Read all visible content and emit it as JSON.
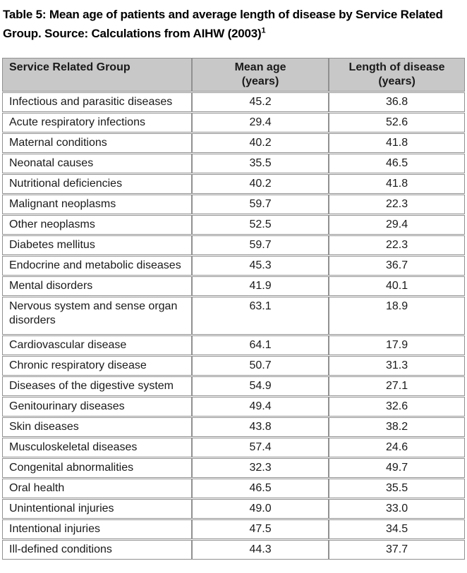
{
  "caption": {
    "text": "Table 5: Mean age of patients and average length of disease by Service Related Group. Source: Calculations from AIHW (2003)",
    "footnote_marker": "1"
  },
  "colors": {
    "header_background": "#c8c8c8",
    "table_border": "#909090",
    "text": "#1a1a1a"
  },
  "table": {
    "headers": {
      "group": "Service Related Group",
      "mean_age": "Mean age\n(years)",
      "length_of_disease": "Length of disease\n(years)"
    },
    "rows": [
      {
        "group": "Infectious and parasitic diseases",
        "mean_age": "45.2",
        "length_of_disease": "36.8"
      },
      {
        "group": "Acute respiratory infections",
        "mean_age": "29.4",
        "length_of_disease": "52.6"
      },
      {
        "group": "Maternal conditions",
        "mean_age": "40.2",
        "length_of_disease": "41.8"
      },
      {
        "group": "Neonatal causes",
        "mean_age": "35.5",
        "length_of_disease": "46.5"
      },
      {
        "group": "Nutritional deficiencies",
        "mean_age": "40.2",
        "length_of_disease": "41.8"
      },
      {
        "group": "Malignant neoplasms",
        "mean_age": "59.7",
        "length_of_disease": "22.3"
      },
      {
        "group": "Other neoplasms",
        "mean_age": "52.5",
        "length_of_disease": "29.4"
      },
      {
        "group": "Diabetes mellitus",
        "mean_age": "59.7",
        "length_of_disease": "22.3"
      },
      {
        "group": "Endocrine and metabolic diseases",
        "mean_age": "45.3",
        "length_of_disease": "36.7"
      },
      {
        "group": "Mental disorders",
        "mean_age": "41.9",
        "length_of_disease": "40.1"
      },
      {
        "group": "Nervous system and sense organ disorders",
        "mean_age": "63.1",
        "length_of_disease": "18.9"
      },
      {
        "group": "Cardiovascular disease",
        "mean_age": "64.1",
        "length_of_disease": "17.9"
      },
      {
        "group": "Chronic respiratory disease",
        "mean_age": "50.7",
        "length_of_disease": "31.3"
      },
      {
        "group": "Diseases of the digestive system",
        "mean_age": "54.9",
        "length_of_disease": "27.1"
      },
      {
        "group": "Genitourinary diseases",
        "mean_age": "49.4",
        "length_of_disease": "32.6"
      },
      {
        "group": "Skin diseases",
        "mean_age": "43.8",
        "length_of_disease": "38.2"
      },
      {
        "group": "Musculoskeletal diseases",
        "mean_age": "57.4",
        "length_of_disease": "24.6"
      },
      {
        "group": "Congenital abnormalities",
        "mean_age": "32.3",
        "length_of_disease": "49.7"
      },
      {
        "group": "Oral health",
        "mean_age": "46.5",
        "length_of_disease": "35.5"
      },
      {
        "group": "Unintentional injuries",
        "mean_age": "49.0",
        "length_of_disease": "33.0"
      },
      {
        "group": "Intentional injuries",
        "mean_age": "47.5",
        "length_of_disease": "34.5"
      },
      {
        "group": "Ill-defined conditions",
        "mean_age": "44.3",
        "length_of_disease": "37.7"
      }
    ]
  }
}
